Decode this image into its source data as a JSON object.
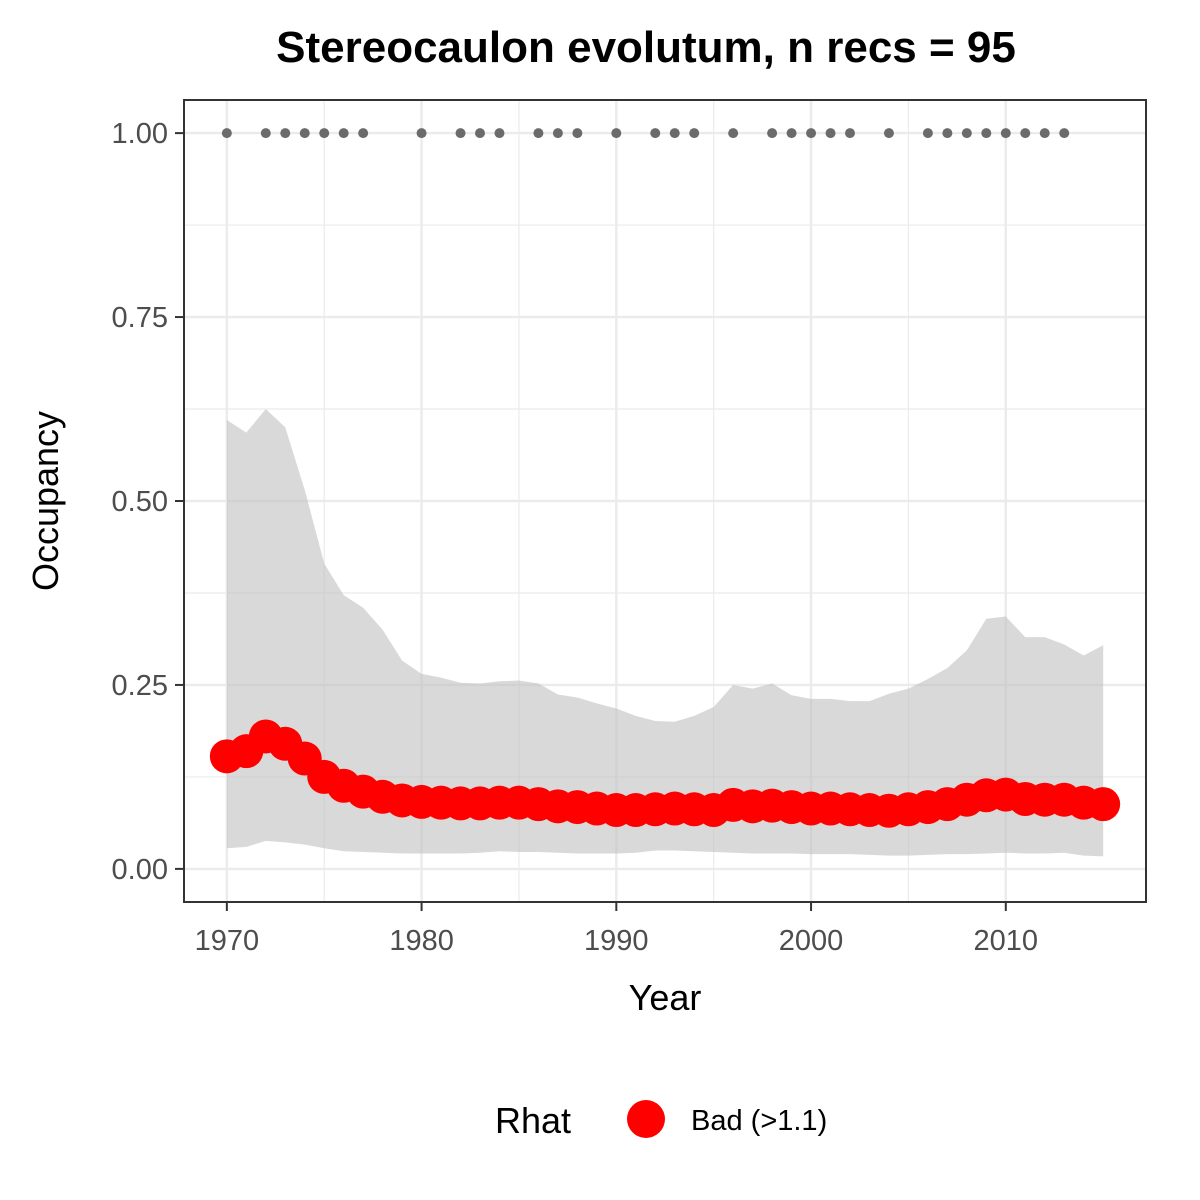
{
  "chart_data": {
    "type": "line",
    "title": "Stereocaulon evolutum, n recs = 95",
    "xlabel": "Year",
    "ylabel": "Occupancy",
    "xlim": [
      1967.8,
      2017.2
    ],
    "ylim": [
      -0.045,
      1.045
    ],
    "x_ticks": [
      1970,
      1980,
      1990,
      2000,
      2010
    ],
    "x_tick_labels": [
      "1970",
      "1980",
      "1990",
      "2000",
      "2010"
    ],
    "y_ticks": [
      0,
      0.25,
      0.5,
      0.75,
      1
    ],
    "y_tick_labels": [
      "0.00",
      "0.25",
      "0.50",
      "0.75",
      "1.00"
    ],
    "grid": true,
    "years": [
      1970,
      1971,
      1972,
      1973,
      1974,
      1975,
      1976,
      1977,
      1978,
      1979,
      1980,
      1981,
      1982,
      1983,
      1984,
      1985,
      1986,
      1987,
      1988,
      1989,
      1990,
      1991,
      1992,
      1993,
      1994,
      1995,
      1996,
      1997,
      1998,
      1999,
      2000,
      2001,
      2002,
      2003,
      2004,
      2005,
      2006,
      2007,
      2008,
      2009,
      2010,
      2011,
      2012,
      2013,
      2014,
      2015
    ],
    "series": [
      {
        "role": "mean",
        "values": [
          0.153,
          0.16,
          0.18,
          0.17,
          0.15,
          0.125,
          0.113,
          0.105,
          0.098,
          0.093,
          0.091,
          0.09,
          0.089,
          0.089,
          0.09,
          0.09,
          0.088,
          0.085,
          0.084,
          0.082,
          0.08,
          0.08,
          0.081,
          0.082,
          0.081,
          0.08,
          0.087,
          0.085,
          0.086,
          0.084,
          0.082,
          0.082,
          0.081,
          0.08,
          0.079,
          0.081,
          0.084,
          0.088,
          0.094,
          0.1,
          0.101,
          0.095,
          0.094,
          0.094,
          0.09,
          0.088
        ]
      },
      {
        "role": "upper_95ci",
        "values": [
          0.61,
          0.593,
          0.625,
          0.6,
          0.515,
          0.415,
          0.372,
          0.355,
          0.325,
          0.283,
          0.265,
          0.26,
          0.253,
          0.252,
          0.255,
          0.256,
          0.252,
          0.237,
          0.233,
          0.225,
          0.218,
          0.208,
          0.201,
          0.2,
          0.208,
          0.22,
          0.25,
          0.245,
          0.252,
          0.236,
          0.231,
          0.231,
          0.228,
          0.228,
          0.238,
          0.245,
          0.258,
          0.273,
          0.297,
          0.34,
          0.343,
          0.315,
          0.315,
          0.305,
          0.29,
          0.304
        ]
      },
      {
        "role": "lower_95ci",
        "values": [
          0.028,
          0.03,
          0.038,
          0.036,
          0.033,
          0.028,
          0.024,
          0.023,
          0.022,
          0.021,
          0.021,
          0.021,
          0.021,
          0.022,
          0.024,
          0.023,
          0.023,
          0.022,
          0.021,
          0.021,
          0.021,
          0.022,
          0.025,
          0.025,
          0.024,
          0.023,
          0.022,
          0.021,
          0.021,
          0.021,
          0.02,
          0.02,
          0.02,
          0.019,
          0.018,
          0.018,
          0.019,
          0.02,
          0.02,
          0.021,
          0.022,
          0.021,
          0.021,
          0.022,
          0.018,
          0.017
        ]
      }
    ],
    "records": {
      "y": 1,
      "years": [
        1970,
        1972,
        1973,
        1974,
        1975,
        1976,
        1977,
        1980,
        1982,
        1983,
        1984,
        1986,
        1987,
        1988,
        1990,
        1992,
        1993,
        1994,
        1996,
        1998,
        1999,
        2000,
        2001,
        2002,
        2004,
        2006,
        2007,
        2008,
        2009,
        2010,
        2011,
        2012,
        2013
      ]
    },
    "legend": {
      "title": "Rhat",
      "entries": [
        {
          "label": "Bad (>1.1)",
          "color": "#ff0000"
        }
      ],
      "position": "bottom"
    },
    "colors": {
      "mean_points": "#ff0000",
      "ci_ribbon": "#bfbfbf",
      "records": "#6b6b6b",
      "grid": "#ebebeb",
      "panel_border": "#333333"
    }
  }
}
